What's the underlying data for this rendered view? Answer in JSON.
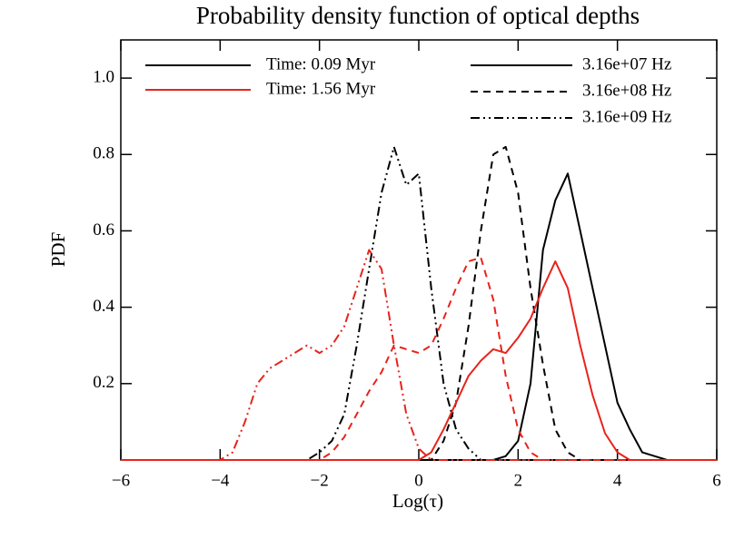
{
  "chart_data": {
    "type": "line",
    "title": "Probability density function of optical depths",
    "xlabel": "Log(τ)",
    "ylabel": "PDF",
    "xlim": [
      -6,
      6
    ],
    "ylim": [
      0,
      1.1
    ],
    "xticks": [
      {
        "value": -6,
        "label": "−6"
      },
      {
        "value": -4,
        "label": "−4"
      },
      {
        "value": -2,
        "label": "−2"
      },
      0,
      2,
      4,
      6
    ],
    "yticks": [
      0.2,
      0.4,
      0.6,
      0.8,
      {
        "value": 1,
        "label": "1.0"
      }
    ],
    "x": [
      -6,
      -5,
      -4.5,
      -4,
      -3.75,
      -3.5,
      -3.25,
      -3,
      -2.75,
      -2.5,
      -2.25,
      -2,
      -1.75,
      -1.5,
      -1.25,
      -1,
      -0.75,
      -0.5,
      -0.25,
      0,
      0.25,
      0.5,
      0.75,
      1,
      1.25,
      1.5,
      1.75,
      2,
      2.25,
      2.5,
      2.75,
      3,
      3.25,
      3.5,
      3.75,
      4,
      4.25,
      4.5,
      4.75,
      5,
      5.5,
      6
    ],
    "series": [
      {
        "color": "#000000",
        "dash": "solid",
        "values": [
          0,
          0,
          0,
          0,
          0,
          0,
          0,
          0,
          0,
          0,
          0,
          0,
          0,
          0,
          0,
          0,
          0,
          0,
          0,
          0,
          0,
          0,
          0,
          0,
          0,
          0,
          0.01,
          0.05,
          0.2,
          0.55,
          0.68,
          0.75,
          0.6,
          0.45,
          0.3,
          0.15,
          0.08,
          0.02,
          0.01,
          0,
          0,
          0
        ]
      },
      {
        "color": "#000000",
        "dash": "dashed",
        "values": [
          0,
          0,
          0,
          0,
          0,
          0,
          0,
          0,
          0,
          0,
          0,
          0,
          0,
          0,
          0,
          0,
          0,
          0,
          0,
          0,
          0,
          0.05,
          0.15,
          0.35,
          0.6,
          0.8,
          0.82,
          0.7,
          0.45,
          0.25,
          0.08,
          0.02,
          0,
          0,
          0,
          0,
          0,
          0,
          0,
          0,
          0,
          0
        ]
      },
      {
        "color": "#000000",
        "dash": "dash-dot-dot",
        "values": [
          0,
          0,
          0,
          0,
          0,
          0,
          0,
          0,
          0,
          0,
          0,
          0.02,
          0.05,
          0.12,
          0.3,
          0.5,
          0.7,
          0.82,
          0.72,
          0.75,
          0.45,
          0.2,
          0.08,
          0.03,
          0,
          0,
          0,
          0,
          0,
          0,
          0,
          0,
          0,
          0,
          0,
          0,
          0,
          0,
          0,
          0,
          0,
          0
        ]
      },
      {
        "color": "#e8231b",
        "dash": "solid",
        "values": [
          0,
          0,
          0,
          0,
          0,
          0,
          0,
          0,
          0,
          0,
          0,
          0,
          0,
          0,
          0,
          0,
          0,
          0,
          0,
          0,
          0.02,
          0.08,
          0.15,
          0.22,
          0.26,
          0.29,
          0.28,
          0.32,
          0.37,
          0.45,
          0.52,
          0.45,
          0.3,
          0.17,
          0.07,
          0.02,
          0,
          0,
          0,
          0,
          0,
          0
        ]
      },
      {
        "color": "#e8231b",
        "dash": "dashed",
        "values": [
          0,
          0,
          0,
          0,
          0,
          0,
          0,
          0,
          0,
          0,
          0,
          0,
          0.02,
          0.06,
          0.12,
          0.18,
          0.23,
          0.3,
          0.29,
          0.28,
          0.3,
          0.37,
          0.45,
          0.52,
          0.53,
          0.42,
          0.22,
          0.08,
          0.02,
          0,
          0,
          0,
          0,
          0,
          0,
          0,
          0,
          0,
          0,
          0,
          0,
          0
        ]
      },
      {
        "color": "#e8231b",
        "dash": "dash-dot-dot",
        "values": [
          0,
          0,
          0,
          0,
          0.02,
          0.1,
          0.2,
          0.24,
          0.26,
          0.28,
          0.3,
          0.28,
          0.3,
          0.35,
          0.45,
          0.55,
          0.5,
          0.3,
          0.12,
          0.03,
          0,
          0,
          0,
          0,
          0,
          0,
          0,
          0,
          0,
          0,
          0,
          0,
          0,
          0,
          0,
          0,
          0,
          0,
          0,
          0,
          0,
          0
        ]
      }
    ],
    "legend": {
      "times": [
        {
          "label": "Time: 0.09 Myr",
          "color": "#000000"
        },
        {
          "label": "Time: 1.56 Myr",
          "color": "#e8231b"
        }
      ],
      "frequencies": [
        {
          "label": "3.16e+07 Hz",
          "dash": "solid"
        },
        {
          "label": "3.16e+08 Hz",
          "dash": "dashed"
        },
        {
          "label": "3.16e+09 Hz",
          "dash": "dash-dot-dot"
        }
      ]
    }
  }
}
